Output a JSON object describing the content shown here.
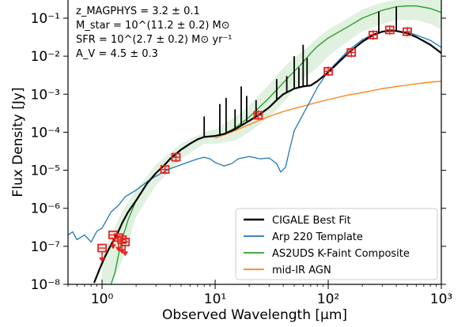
{
  "chart_data": {
    "type": "line",
    "xlabel": "Observed Wavelength [μm]",
    "ylabel": "Flux Density [Jy]",
    "xscale": "log",
    "yscale": "log",
    "xlim": [
      0.5,
      1000
    ],
    "ylim": [
      1e-08,
      0.3
    ],
    "xticks": [
      {
        "value": 1,
        "label": "10⁰"
      },
      {
        "value": 10,
        "label": "10¹"
      },
      {
        "value": 100,
        "label": "10²"
      },
      {
        "value": 1000,
        "label": "10³"
      }
    ],
    "yticks": [
      {
        "value": 1e-08,
        "label": "10⁻⁸"
      },
      {
        "value": 1e-07,
        "label": "10⁻⁷"
      },
      {
        "value": 1e-06,
        "label": "10⁻⁶"
      },
      {
        "value": 1e-05,
        "label": "10⁻⁵"
      },
      {
        "value": 0.0001,
        "label": "10⁻⁴"
      },
      {
        "value": 0.001,
        "label": "10⁻³"
      },
      {
        "value": 0.01,
        "label": "10⁻²"
      },
      {
        "value": 0.1,
        "label": "10⁻¹"
      }
    ],
    "annotations": [
      "z_MAGPHYS = 3.2 ± 0.1",
      "M_star = 10^(11.2 ± 0.2) M⊙",
      "SFR = 10^(2.7 ± 0.2) M⊙ yr⁻¹",
      "A_V = 4.5 ± 0.3"
    ],
    "legend_position": "lower-right",
    "series": [
      {
        "name": "CIGALE Best Fit",
        "color": "#000000",
        "points": [
          [
            0.85,
            1.1e-08
          ],
          [
            0.95,
            2.5e-08
          ],
          [
            1.05,
            5e-08
          ],
          [
            1.2,
            1.1e-07
          ],
          [
            1.35,
            2e-07
          ],
          [
            1.5,
            4e-07
          ],
          [
            1.7,
            8e-07
          ],
          [
            2.0,
            1.6e-06
          ],
          [
            2.5,
            4.5e-06
          ],
          [
            3.0,
            8.5e-06
          ],
          [
            3.5,
            1.3e-05
          ],
          [
            4.0,
            2e-05
          ],
          [
            5.0,
            3.5e-05
          ],
          [
            6.0,
            5e-05
          ],
          [
            7.0,
            6.5e-05
          ],
          [
            8.0,
            7.5e-05
          ],
          [
            10.0,
            8e-05
          ],
          [
            12.0,
            9e-05
          ],
          [
            15.0,
            0.00012
          ],
          [
            20.0,
            0.0002
          ],
          [
            25.0,
            0.0003
          ],
          [
            30.0,
            0.00045
          ],
          [
            35.0,
            0.0007
          ],
          [
            40.0,
            0.001
          ],
          [
            50.0,
            0.0014
          ],
          [
            60.0,
            0.0016
          ],
          [
            70.0,
            0.0017
          ],
          [
            80.0,
            0.0022
          ],
          [
            100.0,
            0.0038
          ],
          [
            150.0,
            0.012
          ],
          [
            200.0,
            0.024
          ],
          [
            250.0,
            0.036
          ],
          [
            300.0,
            0.044
          ],
          [
            350.0,
            0.047
          ],
          [
            400.0,
            0.046
          ],
          [
            500.0,
            0.04
          ],
          [
            600.0,
            0.032
          ],
          [
            800.0,
            0.02
          ],
          [
            1000.0,
            0.012
          ]
        ]
      },
      {
        "name": "Arp 220 Template",
        "color": "#1f77b4",
        "points": [
          [
            0.5,
            2e-07
          ],
          [
            0.55,
            2.4e-07
          ],
          [
            0.6,
            1.5e-07
          ],
          [
            0.7,
            2e-07
          ],
          [
            0.8,
            1.3e-07
          ],
          [
            0.9,
            2.5e-07
          ],
          [
            1.0,
            3e-07
          ],
          [
            1.1,
            5e-07
          ],
          [
            1.2,
            8e-07
          ],
          [
            1.4,
            1.2e-06
          ],
          [
            1.6,
            2e-06
          ],
          [
            2.0,
            3e-06
          ],
          [
            2.5,
            5e-06
          ],
          [
            3.0,
            7e-06
          ],
          [
            3.5,
            9e-06
          ],
          [
            4.0,
            1.1e-05
          ],
          [
            5.0,
            1.4e-05
          ],
          [
            6.0,
            1.7e-05
          ],
          [
            7.0,
            2e-05
          ],
          [
            8.0,
            2.2e-05
          ],
          [
            9.0,
            2e-05
          ],
          [
            10.0,
            1.6e-05
          ],
          [
            12.0,
            1.3e-05
          ],
          [
            14.0,
            1.5e-05
          ],
          [
            16.0,
            2e-05
          ],
          [
            20.0,
            2.3e-05
          ],
          [
            25.0,
            2e-05
          ],
          [
            30.0,
            2.1e-05
          ],
          [
            35.0,
            1.5e-05
          ],
          [
            38.0,
            9e-06
          ],
          [
            42.0,
            1.2e-05
          ],
          [
            45.0,
            3e-05
          ],
          [
            50.0,
            0.00011
          ],
          [
            60.0,
            0.0003
          ],
          [
            70.0,
            0.0007
          ],
          [
            80.0,
            0.0015
          ],
          [
            100.0,
            0.004
          ],
          [
            120.0,
            0.007
          ],
          [
            150.0,
            0.014
          ],
          [
            200.0,
            0.027
          ],
          [
            250.0,
            0.038
          ],
          [
            300.0,
            0.044
          ],
          [
            350.0,
            0.046
          ],
          [
            400.0,
            0.046
          ],
          [
            500.0,
            0.042
          ],
          [
            600.0,
            0.036
          ],
          [
            800.0,
            0.026
          ],
          [
            1000.0,
            0.017
          ]
        ]
      },
      {
        "name": "AS2UDS K-Faint Composite",
        "color": "#2ca02c",
        "points": [
          [
            1.2,
            1e-08
          ],
          [
            1.3,
            2e-08
          ],
          [
            1.4,
            6e-08
          ],
          [
            1.5,
            1.5e-07
          ],
          [
            1.7,
            5e-07
          ],
          [
            2.0,
            1.6e-06
          ],
          [
            2.5,
            4.5e-06
          ],
          [
            3.0,
            8.5e-06
          ],
          [
            3.5,
            1.3e-05
          ],
          [
            4.0,
            2e-05
          ],
          [
            5.0,
            3.5e-05
          ],
          [
            6.0,
            5e-05
          ],
          [
            7.0,
            6.5e-05
          ],
          [
            8.0,
            7.5e-05
          ],
          [
            10.0,
            8e-05
          ],
          [
            12.0,
            9e-05
          ],
          [
            15.0,
            0.00013
          ],
          [
            20.0,
            0.00025
          ],
          [
            30.0,
            0.0008
          ],
          [
            40.0,
            0.002
          ],
          [
            50.0,
            0.004
          ],
          [
            60.0,
            0.007
          ],
          [
            70.0,
            0.012
          ],
          [
            80.0,
            0.018
          ],
          [
            100.0,
            0.03
          ],
          [
            150.0,
            0.06
          ],
          [
            200.0,
            0.1
          ],
          [
            300.0,
            0.16
          ],
          [
            400.0,
            0.2
          ],
          [
            500.0,
            0.21
          ],
          [
            600.0,
            0.21
          ],
          [
            800.0,
            0.18
          ],
          [
            1000.0,
            0.14
          ]
        ]
      },
      {
        "name": "mid-IR AGN",
        "color": "#ff7f0e",
        "points": [
          [
            10.0,
            7e-05
          ],
          [
            15.0,
            0.00011
          ],
          [
            20.0,
            0.00016
          ],
          [
            30.0,
            0.00026
          ],
          [
            40.0,
            0.00035
          ],
          [
            50.0,
            0.00042
          ],
          [
            70.0,
            0.00055
          ],
          [
            100.0,
            0.00072
          ],
          [
            150.0,
            0.00095
          ],
          [
            200.0,
            0.0011
          ],
          [
            300.0,
            0.0014
          ],
          [
            500.0,
            0.00175
          ],
          [
            700.0,
            0.002
          ],
          [
            1000.0,
            0.0022
          ]
        ]
      }
    ],
    "uncertainty_band": {
      "color": "#2ca02c",
      "upper": [
        [
          1.0,
          5e-08
        ],
        [
          1.2,
          2e-07
        ],
        [
          1.5,
          8e-07
        ],
        [
          2.0,
          3e-06
        ],
        [
          3.0,
          1.4e-05
        ],
        [
          5.0,
          5e-05
        ],
        [
          8.0,
          0.0001
        ],
        [
          10.0,
          0.00012
        ],
        [
          15.0,
          0.00025
        ],
        [
          20.0,
          0.0005
        ],
        [
          30.0,
          0.0018
        ],
        [
          40.0,
          0.005
        ],
        [
          50.0,
          0.009
        ],
        [
          60.0,
          0.014
        ],
        [
          80.0,
          0.03
        ],
        [
          100.0,
          0.05
        ],
        [
          150.0,
          0.1
        ],
        [
          200.0,
          0.17
        ],
        [
          300.0,
          0.26
        ],
        [
          400.0,
          0.3
        ],
        [
          600.0,
          0.3
        ],
        [
          800.0,
          0.3
        ],
        [
          1000.0,
          0.3
        ]
      ],
      "lower": [
        [
          1.0,
          1e-08
        ],
        [
          1.2,
          1e-08
        ],
        [
          1.5,
          4e-08
        ],
        [
          2.0,
          6e-07
        ],
        [
          3.0,
          4e-06
        ],
        [
          5.0,
          2e-05
        ],
        [
          8.0,
          5e-05
        ],
        [
          10.0,
          5e-05
        ],
        [
          15.0,
          6e-05
        ],
        [
          20.0,
          0.0001
        ],
        [
          30.0,
          0.00025
        ],
        [
          40.0,
          0.0006
        ],
        [
          50.0,
          0.0013
        ],
        [
          60.0,
          0.0025
        ],
        [
          80.0,
          0.005
        ],
        [
          100.0,
          0.01
        ],
        [
          150.0,
          0.025
        ],
        [
          200.0,
          0.045
        ],
        [
          300.0,
          0.07
        ],
        [
          400.0,
          0.09
        ],
        [
          600.0,
          0.09
        ],
        [
          800.0,
          0.07
        ],
        [
          1000.0,
          0.05
        ]
      ]
    },
    "spikes": [
      {
        "x": 8.0,
        "y": 0.00026
      },
      {
        "x": 11.0,
        "y": 0.00055
      },
      {
        "x": 12.5,
        "y": 0.0008
      },
      {
        "x": 15.0,
        "y": 0.0004
      },
      {
        "x": 17.0,
        "y": 0.0016
      },
      {
        "x": 19.0,
        "y": 0.0009
      },
      {
        "x": 23.0,
        "y": 0.0007
      },
      {
        "x": 35.0,
        "y": 0.0025
      },
      {
        "x": 43.0,
        "y": 0.003
      },
      {
        "x": 50.0,
        "y": 0.01
      },
      {
        "x": 55.0,
        "y": 0.005
      },
      {
        "x": 60.0,
        "y": 0.02
      },
      {
        "x": 65.0,
        "y": 0.009
      },
      {
        "x": 280.0,
        "y": 0.15
      },
      {
        "x": 400.0,
        "y": 0.2
      }
    ],
    "photometry": {
      "color": "#e8211f",
      "detections": [
        {
          "x": 3.6,
          "y": 1.05e-05
        },
        {
          "x": 4.5,
          "y": 2.2e-05
        },
        {
          "x": 24.0,
          "y": 0.00028
        },
        {
          "x": 100.0,
          "y": 0.004
        },
        {
          "x": 160.0,
          "y": 0.0125
        },
        {
          "x": 250.0,
          "y": 0.036
        },
        {
          "x": 350.0,
          "y": 0.049
        },
        {
          "x": 500.0,
          "y": 0.044
        }
      ],
      "upper_limits": [
        {
          "x": 1.0,
          "y": 9e-08
        },
        {
          "x": 1.25,
          "y": 2e-07
        },
        {
          "x": 1.4,
          "y": 1.7e-07
        },
        {
          "x": 1.5,
          "y": 1.5e-07
        },
        {
          "x": 1.6,
          "y": 1.3e-07
        }
      ]
    }
  }
}
